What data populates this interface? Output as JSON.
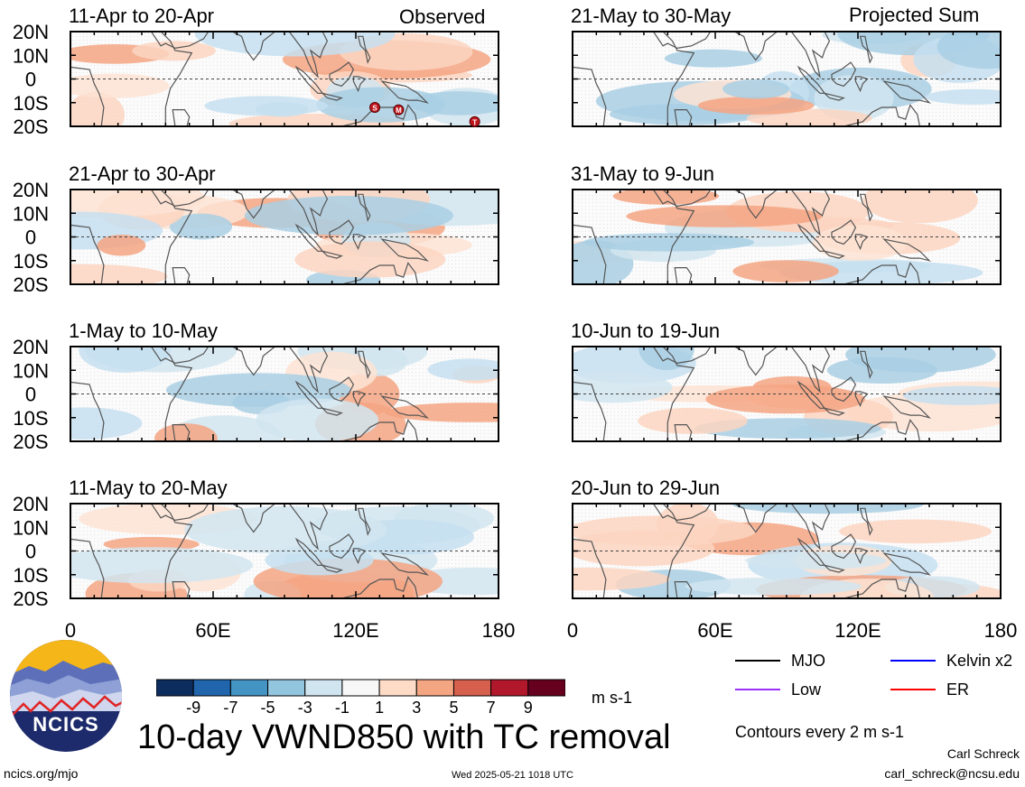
{
  "header": {
    "left_label": "Observed",
    "right_label": "Projected Sum"
  },
  "chart_data": {
    "type": "heatmap",
    "title": "10-day VWND850 with TC removal",
    "unit": "m s-1",
    "lat_ticks": [
      "20N",
      "10N",
      "0",
      "10S",
      "20S"
    ],
    "lon_ticks": [
      "0",
      "60E",
      "120E",
      "180"
    ],
    "xlim": [
      0,
      180
    ],
    "ylim": [
      -20,
      20
    ],
    "colorbar": {
      "levels": [
        "-9",
        "-7",
        "-5",
        "-3",
        "-1",
        "1",
        "3",
        "5",
        "7",
        "9"
      ],
      "colors": [
        "#0d2d5e",
        "#2166ac",
        "#4393c3",
        "#92c5de",
        "#d1e5f0",
        "#f7f7f7",
        "#fddbc7",
        "#f4a582",
        "#d6604d",
        "#b2182b",
        "#67001f"
      ]
    },
    "panels": [
      {
        "period": "11-Apr to 20-Apr",
        "group": "Observed"
      },
      {
        "period": "21-Apr to 30-Apr",
        "group": "Observed"
      },
      {
        "period": "1-May to 10-May",
        "group": "Observed"
      },
      {
        "period": "11-May to 20-May",
        "group": "Observed"
      },
      {
        "period": "21-May to 30-May",
        "group": "Projected Sum"
      },
      {
        "period": "31-May to 9-Jun",
        "group": "Projected Sum"
      },
      {
        "period": "10-Jun to 19-Jun",
        "group": "Projected Sum"
      },
      {
        "period": "20-Jun to 29-Jun",
        "group": "Projected Sum"
      }
    ],
    "tc_markers": [
      {
        "label": "S",
        "lon": 128,
        "lat": -12
      },
      {
        "label": "M",
        "lon": 138,
        "lat": -13
      },
      {
        "label": "T",
        "lon": 170,
        "lat": -18
      }
    ]
  },
  "legend": {
    "lines": [
      {
        "name": "MJO",
        "color": "#000000"
      },
      {
        "name": "Kelvin x2",
        "color": "#0000ff"
      },
      {
        "name": "Low",
        "color": "#9b30ff"
      },
      {
        "name": "ER",
        "color": "#ff0000"
      }
    ],
    "contours_note": "Contours every 2 m s-1"
  },
  "logo": {
    "text": "NCICS"
  },
  "footer": {
    "url": "ncics.org/mjo",
    "timestamp": "Wed 2025-05-21 1018 UTC",
    "author": "Carl Schreck",
    "email": "carl_schreck@ncsu.edu"
  }
}
